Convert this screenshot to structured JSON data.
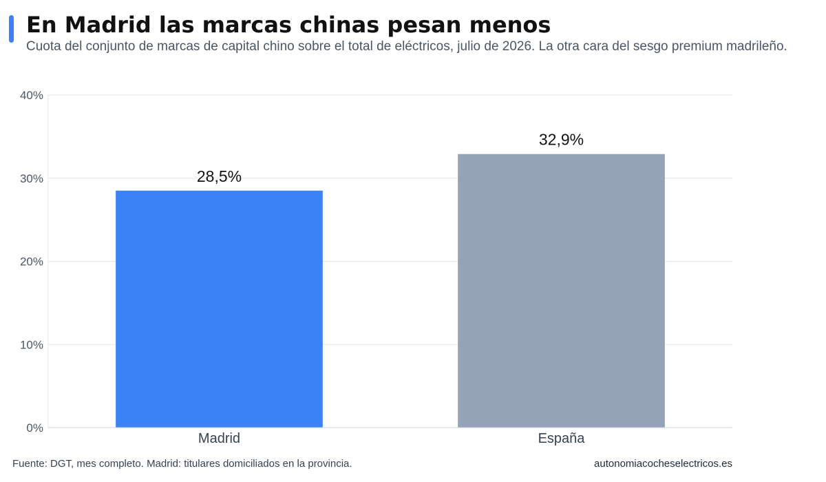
{
  "header": {
    "title": "En Madrid las marcas chinas pesan menos",
    "subtitle": "Cuota del conjunto de marcas de capital chino sobre el total de eléctricos, julio de 2026. La otra cara del sesgo premium madrileño."
  },
  "footer": {
    "source": "Fuente: DGT, mes completo. Madrid: titulares domiciliados en la provincia.",
    "site": "autonomiacocheselectricos.es"
  },
  "colors": {
    "accent": "#3b82f6",
    "madrid_bar": "#3b82f6",
    "espana_bar": "#94a3b8",
    "grid": "#e2e8f0",
    "axis_text": "#4b5563"
  },
  "chart_data": {
    "type": "bar",
    "title": "",
    "xlabel": "",
    "ylabel": "",
    "categories": [
      "Madrid",
      "España"
    ],
    "values": [
      28.5,
      32.9
    ],
    "value_labels": [
      "28,5%",
      "32,9%"
    ],
    "bar_colors": [
      "#3b82f6",
      "#94a3b8"
    ],
    "ylim": [
      0,
      40
    ],
    "yticks": [
      0,
      10,
      20,
      30,
      40
    ],
    "ytick_labels": [
      "0%",
      "10%",
      "20%",
      "30%",
      "40%"
    ],
    "grid": true,
    "legend": "none"
  }
}
